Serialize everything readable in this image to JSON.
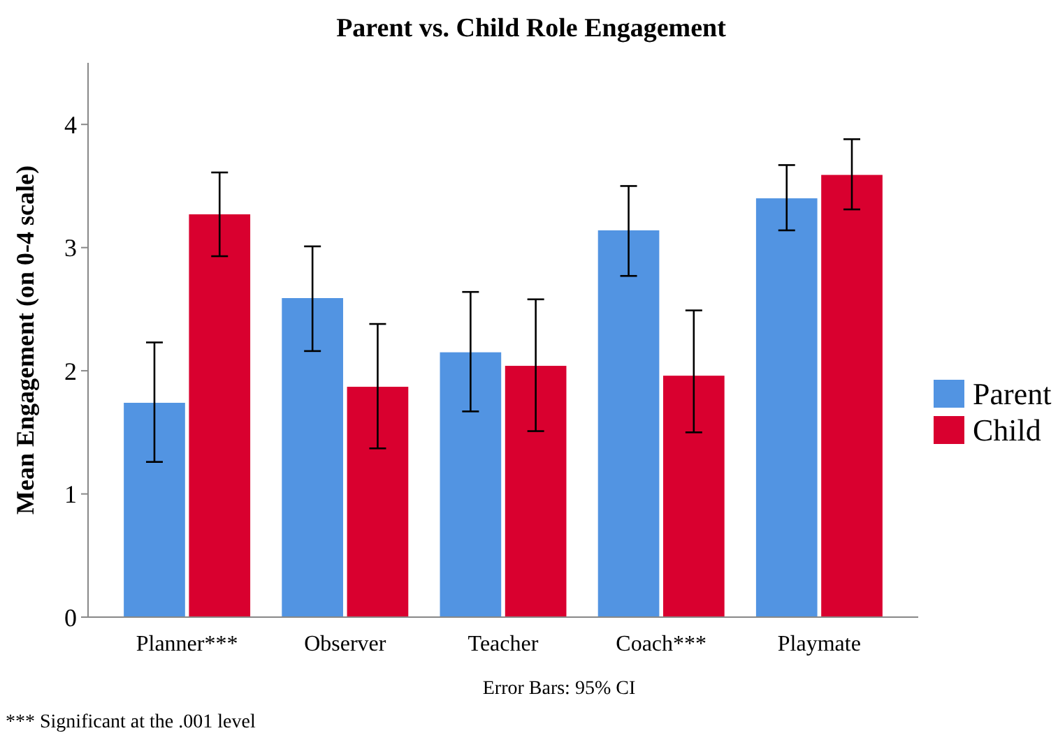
{
  "chart_data": {
    "type": "bar",
    "title": "Parent vs. Child Role Engagement",
    "ylabel": "Mean Engagement (on 0-4 scale)",
    "categories": [
      "Planner***",
      "Observer",
      "Teacher",
      "Coach***",
      "Playmate"
    ],
    "series": [
      {
        "name": "Parent",
        "color": "#5294e2",
        "values": [
          1.74,
          2.59,
          2.15,
          3.14,
          3.4
        ],
        "errors": [
          [
            1.26,
            2.23
          ],
          [
            2.16,
            3.01
          ],
          [
            1.67,
            2.64
          ],
          [
            2.77,
            3.5
          ],
          [
            3.14,
            3.67
          ]
        ]
      },
      {
        "name": "Child",
        "color": "#d9002f",
        "values": [
          3.27,
          1.87,
          2.04,
          1.96,
          3.59
        ],
        "errors": [
          [
            2.93,
            3.61
          ],
          [
            1.37,
            2.38
          ],
          [
            1.51,
            2.58
          ],
          [
            1.5,
            2.49
          ],
          [
            3.31,
            3.88
          ]
        ]
      }
    ],
    "ylim": [
      0,
      4.5
    ],
    "yticks": [
      0,
      1,
      2,
      3,
      4
    ],
    "grid": false,
    "legend": "right",
    "annotations": [
      "Error Bars: 95% CI",
      "*** Significant at the .001 level"
    ]
  }
}
